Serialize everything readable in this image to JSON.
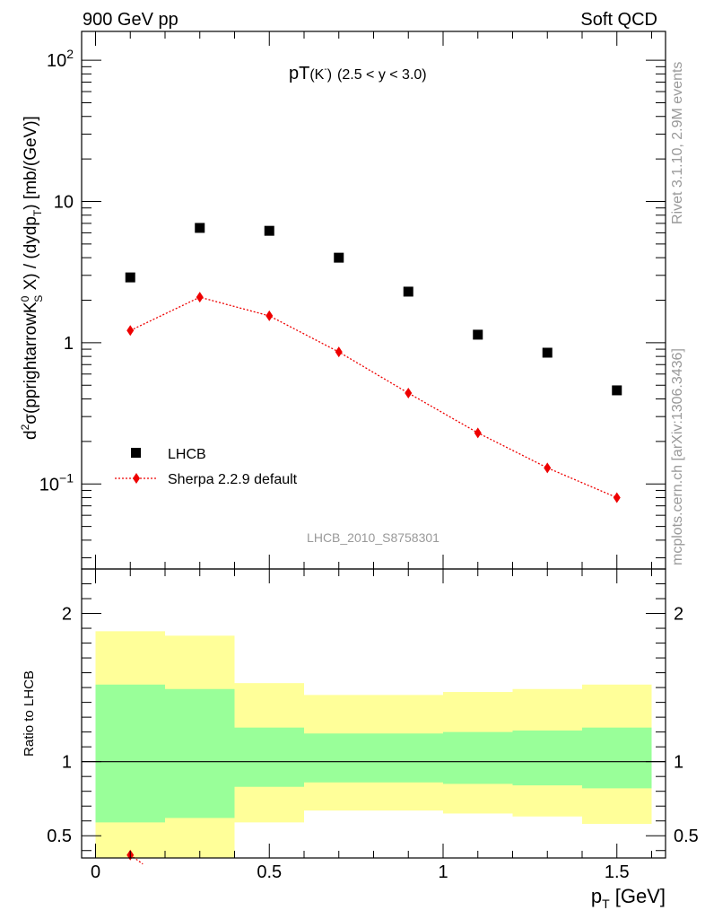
{
  "header": {
    "left": "900 GeV pp",
    "right": "Soft QCD"
  },
  "side_labels": {
    "version": "Rivet 3.1.10,  2.9M events",
    "source": "mcplots.cern.ch [arXiv:1306.3436]"
  },
  "analysis_id": "LHCB_2010_S8758301",
  "colors": {
    "data": "#000000",
    "mc": "#ee0000",
    "band_inner": "#99ff99",
    "band_outer": "#ffff99"
  },
  "chart_data": [
    {
      "type": "scatter",
      "title_main": "pT",
      "title_particle": "(K",
      "title_particle_sup": "-",
      "title_particle_close": ")",
      "title_range": "(2.5 < y < 3.0)",
      "ylabel_parts": {
        "p1": "d",
        "p2": "2",
        "p3": "σ(pprightarrowK",
        "p4": "0",
        "p5": "S",
        "p6": " X) / (dydp",
        "p7": "T",
        "p8": ") [mb/(GeV)]"
      },
      "yscale": "log",
      "ylim": [
        0.025,
        160
      ],
      "xlim": [
        -0.04,
        1.64
      ],
      "ytick_labels": [
        {
          "value": 0.1,
          "base": "10",
          "exp": "−1"
        },
        {
          "value": 1,
          "base": "1",
          "exp": ""
        },
        {
          "value": 10,
          "base": "10",
          "exp": ""
        },
        {
          "value": 100,
          "base": "10",
          "exp": "2"
        }
      ],
      "legend_position": "lower-left",
      "series": [
        {
          "name": "LHCB",
          "marker": "square",
          "x": [
            0.1,
            0.3,
            0.5,
            0.7,
            0.9,
            1.1,
            1.3,
            1.5
          ],
          "y": [
            2.9,
            6.5,
            6.2,
            4.0,
            2.3,
            1.14,
            0.85,
            0.46
          ]
        },
        {
          "name": "Sherpa 2.2.9 default",
          "marker": "diamond",
          "line": "dotted",
          "x": [
            0.1,
            0.3,
            0.5,
            0.7,
            0.9,
            1.1,
            1.3,
            1.5
          ],
          "y": [
            1.22,
            2.1,
            1.55,
            0.86,
            0.44,
            0.23,
            0.13,
            0.08
          ]
        }
      ]
    },
    {
      "type": "area",
      "ylabel": "Ratio to LHCB",
      "xlabel_main": "p",
      "xlabel_sub": "T",
      "xlabel_unit": " [GeV]",
      "ylim": [
        0.35,
        2.3
      ],
      "xlim": [
        -0.04,
        1.64
      ],
      "ytick_labels": [
        "0.5",
        "1",
        "2"
      ],
      "ytick_values": [
        0.5,
        1,
        2
      ],
      "xtick_labels": [
        "0",
        "0.5",
        "1",
        "1.5"
      ],
      "xtick_values": [
        0,
        0.5,
        1,
        1.5
      ],
      "bins": [
        {
          "lo": 0.0,
          "hi": 0.2,
          "inner": [
            0.59,
            1.52
          ],
          "outer": [
            0.0,
            1.88
          ]
        },
        {
          "lo": 0.2,
          "hi": 0.4,
          "inner": [
            0.62,
            1.49
          ],
          "outer": [
            0.0,
            1.85
          ]
        },
        {
          "lo": 0.4,
          "hi": 0.6,
          "inner": [
            0.83,
            1.23
          ],
          "outer": [
            0.59,
            1.53
          ]
        },
        {
          "lo": 0.6,
          "hi": 0.8,
          "inner": [
            0.86,
            1.19
          ],
          "outer": [
            0.67,
            1.45
          ]
        },
        {
          "lo": 0.8,
          "hi": 1.0,
          "inner": [
            0.86,
            1.19
          ],
          "outer": [
            0.67,
            1.45
          ]
        },
        {
          "lo": 1.0,
          "hi": 1.2,
          "inner": [
            0.85,
            1.2
          ],
          "outer": [
            0.65,
            1.47
          ]
        },
        {
          "lo": 1.2,
          "hi": 1.4,
          "inner": [
            0.84,
            1.21
          ],
          "outer": [
            0.63,
            1.49
          ]
        },
        {
          "lo": 1.4,
          "hi": 1.6,
          "inner": [
            0.82,
            1.23
          ],
          "outer": [
            0.58,
            1.52
          ]
        }
      ],
      "reference_line": 1,
      "ratio_points": {
        "name": "Sherpa 2.2.9 default",
        "x": [
          0.1
        ],
        "y": [
          0.37
        ]
      }
    }
  ]
}
